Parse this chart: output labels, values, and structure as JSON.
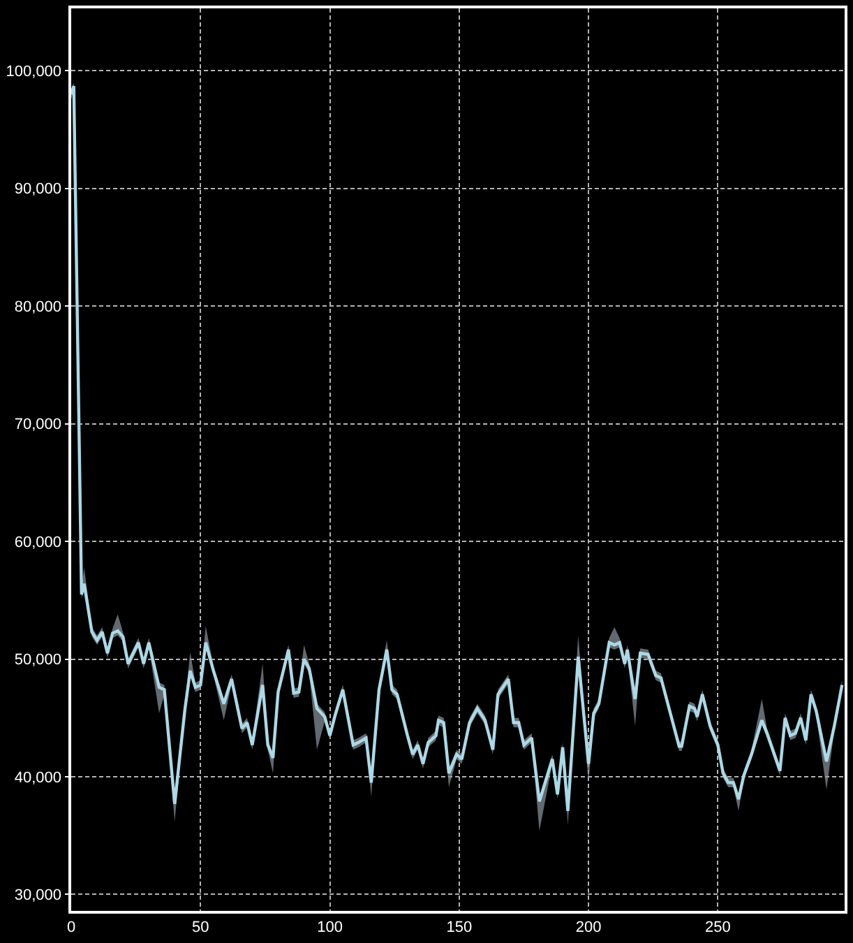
{
  "chart_data": {
    "type": "line",
    "grid": true,
    "marker": "none",
    "line_style": "solid",
    "xlim": [
      0,
      299
    ],
    "xticks": [
      0,
      50,
      100,
      150,
      200,
      250
    ],
    "ylim": [
      28600,
      105300
    ],
    "yticks": [
      {
        "value": 30000,
        "label": "30,000"
      },
      {
        "value": 40000,
        "label": "40,000"
      },
      {
        "value": 50000,
        "label": "50,000"
      },
      {
        "value": 60000,
        "label": "60,000"
      },
      {
        "value": 70000,
        "label": "70,000"
      },
      {
        "value": 80000,
        "label": "80,000"
      },
      {
        "value": 90000,
        "label": "90,000"
      },
      {
        "value": 100000,
        "label": "100,000"
      }
    ],
    "x": [
      0,
      1,
      4,
      5,
      8,
      10,
      12,
      14,
      16,
      18,
      20,
      22,
      26,
      28,
      30,
      34,
      36,
      40,
      44,
      46,
      48,
      50,
      52,
      55,
      59,
      62,
      66,
      68,
      70,
      74,
      76,
      78,
      80,
      84,
      86,
      88,
      90,
      92,
      95,
      98,
      100,
      102,
      105,
      109,
      111,
      114,
      116,
      119,
      122,
      124,
      126,
      130,
      132,
      134,
      136,
      138,
      141,
      142,
      144,
      146,
      149,
      151,
      154,
      157,
      160,
      163,
      165,
      169,
      171,
      173,
      175,
      178,
      181,
      186,
      188,
      190,
      192,
      196,
      200,
      202,
      204,
      208,
      210,
      212,
      214,
      215,
      218,
      220,
      223,
      226,
      228,
      235,
      236,
      239,
      241,
      242,
      244,
      247,
      250,
      252,
      254,
      256,
      258,
      260,
      263,
      267,
      269,
      274,
      276,
      278,
      280,
      282,
      284,
      286,
      288,
      292,
      295,
      298
    ],
    "series": [
      {
        "color": "#add8e6",
        "values": [
          98000,
          98700,
          55500,
          56400,
          52300,
          51600,
          52300,
          50500,
          52200,
          52400,
          51900,
          49600,
          51400,
          49600,
          51400,
          47600,
          47400,
          37700,
          45800,
          49000,
          47600,
          47800,
          51400,
          49000,
          46200,
          48300,
          44100,
          44600,
          42700,
          47800,
          42700,
          41600,
          47200,
          50800,
          47100,
          47200,
          50000,
          49200,
          45800,
          45100,
          43500,
          45200,
          47400,
          42700,
          42900,
          43300,
          39500,
          47400,
          50800,
          47400,
          47000,
          43500,
          41900,
          42700,
          41100,
          42900,
          43500,
          44800,
          44600,
          40300,
          41900,
          41500,
          44600,
          45800,
          44800,
          42300,
          47000,
          48300,
          44600,
          44600,
          42700,
          43300,
          37900,
          41500,
          38500,
          42500,
          37100,
          50200,
          41100,
          45400,
          46200,
          51400,
          51200,
          51400,
          49600,
          50800,
          46600,
          50500,
          50400,
          48600,
          48400,
          42600,
          42600,
          46000,
          45800,
          45100,
          47000,
          44300,
          42700,
          40300,
          39500,
          39500,
          38100,
          40100,
          41900,
          44800,
          43700,
          40500,
          45000,
          43500,
          43700,
          45000,
          43100,
          47000,
          45600,
          41300,
          44300,
          47800
        ],
        "upper": [
          98400,
          99000,
          55900,
          57800,
          52700,
          52000,
          52700,
          50900,
          52600,
          53800,
          52300,
          50000,
          51800,
          50000,
          51800,
          48000,
          47800,
          38100,
          46200,
          50600,
          48000,
          48200,
          52800,
          49400,
          46600,
          48700,
          44500,
          45000,
          43100,
          49600,
          43100,
          42000,
          47600,
          51200,
          47500,
          47600,
          51200,
          49600,
          46200,
          45500,
          43900,
          45600,
          47800,
          43100,
          43300,
          43700,
          39900,
          47800,
          51600,
          47800,
          47400,
          43900,
          42300,
          43100,
          41500,
          43300,
          43900,
          45200,
          45000,
          40700,
          42300,
          41900,
          45000,
          46200,
          45200,
          42700,
          47400,
          48700,
          45000,
          45000,
          43100,
          43700,
          38300,
          41900,
          38900,
          42900,
          37500,
          52000,
          41500,
          45800,
          46600,
          51800,
          52700,
          51800,
          50000,
          51200,
          47000,
          50900,
          50800,
          49000,
          48800,
          43000,
          43000,
          46400,
          46200,
          45500,
          47400,
          44700,
          43100,
          40700,
          39900,
          39900,
          38500,
          40500,
          42300,
          46600,
          44100,
          40900,
          45400,
          43900,
          44100,
          45400,
          43500,
          47400,
          46000,
          41700,
          44700,
          48200
        ],
        "lower": [
          97600,
          98300,
          55100,
          56000,
          51900,
          51200,
          51900,
          50100,
          51800,
          52000,
          51500,
          49200,
          51000,
          49200,
          51000,
          45400,
          47000,
          36200,
          45400,
          48600,
          47200,
          47400,
          51000,
          48600,
          44800,
          47900,
          43700,
          44200,
          42300,
          47400,
          42300,
          40300,
          46800,
          50400,
          46700,
          46800,
          49600,
          48800,
          42300,
          44700,
          43100,
          44800,
          47000,
          42300,
          42500,
          42900,
          38300,
          47000,
          50400,
          47000,
          46600,
          43100,
          41500,
          42300,
          40700,
          42500,
          43100,
          44400,
          44200,
          39100,
          41500,
          41100,
          44200,
          45400,
          44400,
          41900,
          46600,
          47900,
          44200,
          44200,
          42300,
          42900,
          35400,
          41100,
          38100,
          42100,
          35900,
          49800,
          39500,
          45000,
          45800,
          51000,
          50800,
          51000,
          49200,
          50400,
          44300,
          50100,
          50000,
          48200,
          48000,
          42200,
          42200,
          45600,
          45400,
          44700,
          46600,
          43900,
          42300,
          39900,
          39100,
          39100,
          37100,
          39700,
          41500,
          44400,
          43300,
          40100,
          44600,
          43100,
          43300,
          44600,
          42700,
          46600,
          45200,
          38900,
          43900,
          47400
        ]
      }
    ]
  }
}
